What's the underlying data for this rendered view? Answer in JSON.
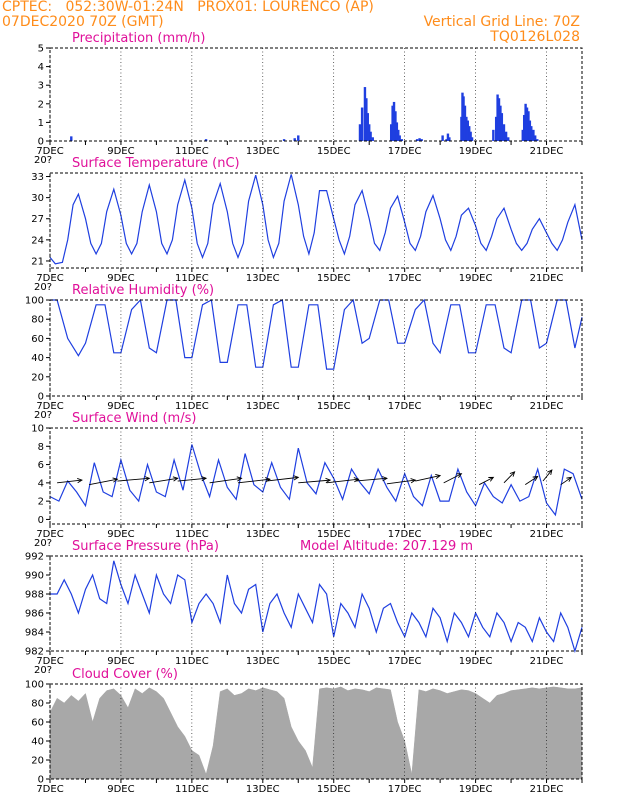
{
  "header": {
    "line1_left": "CPTEC:   052:30W-01:24N   PROX01: LOURENCO (AP)",
    "line2_left": "07DEC2020 70Z (GMT)",
    "line2_right": "Vertical Grid Line: 70Z",
    "line3_right": "TQ0126L028"
  },
  "colors": {
    "series": "#1f3fe0",
    "title": "#e0109a",
    "header": "#ff8c1a",
    "cloud": "#a8a8a8"
  },
  "x_axis": {
    "tick_labels": [
      "7DEC",
      "9DEC",
      "11DEC",
      "13DEC",
      "15DEC",
      "17DEC",
      "19DEC",
      "21DEC"
    ],
    "tick_days": [
      0,
      2,
      4,
      6,
      8,
      10,
      12,
      14
    ],
    "range_days": [
      0,
      15
    ],
    "cut_label": "20?"
  },
  "chart_data": [
    {
      "id": "precip",
      "type": "bar",
      "title": "Precipitation (mm/h)",
      "ylim": [
        0,
        5
      ],
      "yticks": [
        0,
        1,
        2,
        3,
        4,
        5
      ],
      "x": [
        0.6,
        4.4,
        6.6,
        6.9,
        7.0,
        8.74,
        8.8,
        8.88,
        8.92,
        8.96,
        9.0,
        9.04,
        9.1,
        9.62,
        9.66,
        9.7,
        9.74,
        9.78,
        9.82,
        9.86,
        9.92,
        10.35,
        10.42,
        10.48,
        11.07,
        11.18,
        11.22,
        11.26,
        11.6,
        11.63,
        11.66,
        11.7,
        11.74,
        11.78,
        11.82,
        11.86,
        11.9,
        12.5,
        12.58,
        12.62,
        12.66,
        12.7,
        12.74,
        12.8,
        12.86,
        12.92,
        13.33,
        13.37,
        13.41,
        13.45,
        13.49,
        13.53,
        13.57,
        13.63,
        13.68,
        13.74
      ],
      "values": [
        0.25,
        0.1,
        0.1,
        0.15,
        0.3,
        0.9,
        1.8,
        2.9,
        2.3,
        1.5,
        0.9,
        0.5,
        0.2,
        0.9,
        1.9,
        2.1,
        1.6,
        1.0,
        0.6,
        0.3,
        0.1,
        0.1,
        0.15,
        0.1,
        0.3,
        0.1,
        0.4,
        0.2,
        1.3,
        2.6,
        2.4,
        1.9,
        1.3,
        1.1,
        0.8,
        0.5,
        0.2,
        0.6,
        1.3,
        2.5,
        2.3,
        1.9,
        1.5,
        0.9,
        0.5,
        0.2,
        0.6,
        1.4,
        2.0,
        1.8,
        1.6,
        1.1,
        0.8,
        0.6,
        0.3,
        0.1
      ]
    },
    {
      "id": "temp",
      "type": "line",
      "title": "Surface Temperature (nC)",
      "ylim": [
        20,
        33.5
      ],
      "yticks": [
        21,
        24,
        27,
        30,
        33
      ],
      "x": [
        0,
        0.15,
        0.35,
        0.5,
        0.65,
        0.8,
        1,
        1.15,
        1.3,
        1.45,
        1.6,
        1.8,
        2,
        2.15,
        2.3,
        2.45,
        2.6,
        2.8,
        3,
        3.15,
        3.3,
        3.45,
        3.6,
        3.8,
        4,
        4.15,
        4.3,
        4.45,
        4.6,
        4.8,
        5,
        5.15,
        5.3,
        5.45,
        5.6,
        5.8,
        6,
        6.15,
        6.3,
        6.45,
        6.6,
        6.8,
        7,
        7.15,
        7.3,
        7.45,
        7.6,
        7.8,
        8,
        8.15,
        8.3,
        8.45,
        8.6,
        8.8,
        9,
        9.15,
        9.3,
        9.45,
        9.6,
        9.8,
        10,
        10.15,
        10.3,
        10.45,
        10.6,
        10.8,
        11,
        11.15,
        11.3,
        11.45,
        11.6,
        11.8,
        12,
        12.15,
        12.3,
        12.45,
        12.6,
        12.8,
        13,
        13.15,
        13.3,
        13.45,
        13.6,
        13.8,
        14,
        14.15,
        14.3,
        14.45,
        14.6,
        14.8,
        15
      ],
      "values": [
        21.5,
        20.6,
        20.8,
        24,
        29,
        30.5,
        27,
        23.5,
        22,
        23.5,
        28,
        31.2,
        27.5,
        23.5,
        22,
        23.5,
        28,
        31.8,
        28,
        23.5,
        22,
        24,
        29,
        32.5,
        28.5,
        23.5,
        21.5,
        23.5,
        29,
        32,
        28,
        23.5,
        21.5,
        23.5,
        29.5,
        33.2,
        29,
        24,
        21.5,
        23.5,
        29.5,
        33.3,
        29,
        24.5,
        22,
        25,
        31,
        31,
        27,
        24,
        22,
        24.5,
        29,
        31,
        27,
        23.5,
        22.5,
        25,
        28.5,
        30.2,
        26.5,
        23.5,
        22.5,
        24.5,
        28,
        30.3,
        27,
        24,
        22.5,
        24.5,
        27.5,
        28.5,
        26,
        23.5,
        22.5,
        24.5,
        27,
        28.5,
        25.5,
        23.5,
        22.5,
        23.5,
        25.5,
        27,
        25,
        23.5,
        22.5,
        24,
        26.5,
        29,
        24
      ]
    },
    {
      "id": "rh",
      "type": "line",
      "title": "Relative Humidity (%)",
      "ylim": [
        0,
        100
      ],
      "yticks": [
        0,
        20,
        40,
        60,
        80,
        100
      ],
      "x": [
        0,
        0.2,
        0.5,
        0.8,
        1,
        1.3,
        1.55,
        1.8,
        2,
        2.3,
        2.55,
        2.8,
        3,
        3.3,
        3.55,
        3.8,
        4,
        4.3,
        4.55,
        4.8,
        5,
        5.3,
        5.55,
        5.8,
        6,
        6.3,
        6.55,
        6.8,
        7,
        7.3,
        7.55,
        7.8,
        8,
        8.3,
        8.55,
        8.8,
        9,
        9.3,
        9.55,
        9.8,
        10,
        10.3,
        10.55,
        10.8,
        11,
        11.3,
        11.55,
        11.8,
        12,
        12.3,
        12.55,
        12.8,
        13,
        13.3,
        13.55,
        13.8,
        14,
        14.3,
        14.55,
        14.8,
        15
      ],
      "values": [
        100,
        100,
        60,
        42,
        55,
        95,
        95,
        45,
        45,
        90,
        100,
        50,
        45,
        100,
        100,
        40,
        40,
        95,
        100,
        35,
        35,
        95,
        95,
        30,
        30,
        95,
        100,
        30,
        30,
        95,
        95,
        28,
        28,
        90,
        100,
        55,
        60,
        100,
        100,
        55,
        55,
        90,
        100,
        55,
        45,
        95,
        95,
        45,
        45,
        95,
        95,
        50,
        45,
        100,
        100,
        50,
        55,
        100,
        100,
        50,
        82
      ]
    },
    {
      "id": "wind",
      "type": "line",
      "title": "Surface Wind (m/s)",
      "ylim": [
        -0.5,
        10
      ],
      "yticks": [
        0,
        2,
        4,
        6,
        8,
        10
      ],
      "x": [
        0,
        0.25,
        0.5,
        0.75,
        1,
        1.25,
        1.5,
        1.75,
        2,
        2.25,
        2.5,
        2.75,
        3,
        3.25,
        3.5,
        3.75,
        4,
        4.25,
        4.5,
        4.75,
        5,
        5.25,
        5.5,
        5.75,
        6,
        6.25,
        6.5,
        6.75,
        7,
        7.25,
        7.5,
        7.75,
        8,
        8.25,
        8.5,
        8.75,
        9,
        9.25,
        9.5,
        9.75,
        10,
        10.25,
        10.5,
        10.75,
        11,
        11.25,
        11.5,
        11.75,
        12,
        12.25,
        12.5,
        12.75,
        13,
        13.25,
        13.5,
        13.75,
        14,
        14.25,
        14.5,
        14.75,
        15
      ],
      "values": [
        2.5,
        2.0,
        4.2,
        3.0,
        1.5,
        6.2,
        3.0,
        2.5,
        6.5,
        3.2,
        2.0,
        6.0,
        3.0,
        2.5,
        6.5,
        3.2,
        8.2,
        5.0,
        2.5,
        6.5,
        3.5,
        2.2,
        7.2,
        3.8,
        3.0,
        6.2,
        3.5,
        2.2,
        7.8,
        4.0,
        2.8,
        6.2,
        4.5,
        2.2,
        5.5,
        4.0,
        2.8,
        5.5,
        3.5,
        2.0,
        5.0,
        2.5,
        1.5,
        4.8,
        2.0,
        2.0,
        5.5,
        3.0,
        1.5,
        4.0,
        2.5,
        1.8,
        3.8,
        2.0,
        2.5,
        5.5,
        1.8,
        0.5,
        5.5,
        5.0,
        2.2
      ],
      "arrows": {
        "x": [
          0.2,
          1.1,
          1.9,
          2.8,
          3.6,
          4.5,
          5.3,
          6.1,
          7.0,
          7.8,
          8.6,
          9.5,
          10.3,
          11.1,
          12.1,
          12.8,
          13.4,
          13.9,
          14.4
        ],
        "y": [
          4.0,
          3.8,
          4.2,
          4.0,
          4.2,
          4.0,
          4.0,
          4.2,
          4.0,
          4.0,
          4.2,
          3.9,
          4.2,
          4.0,
          3.8,
          4.0,
          3.8,
          4.2,
          3.8
        ],
        "dx": [
          0.7,
          0.8,
          0.9,
          0.8,
          0.8,
          0.9,
          0.9,
          0.9,
          0.9,
          0.9,
          0.9,
          0.8,
          0.7,
          0.5,
          0.4,
          0.3,
          0.35,
          0.25,
          0.3
        ],
        "dy": [
          0.3,
          0.6,
          0.3,
          0.5,
          0.3,
          0.5,
          0.4,
          0.4,
          0.3,
          0.4,
          0.3,
          0.4,
          0.6,
          1.0,
          0.8,
          1.2,
          0.9,
          1.2,
          0.8
        ]
      }
    },
    {
      "id": "pres",
      "type": "line",
      "title": "Surface Pressure (hPa)",
      "subtitle": "Model Altitude: 207.129 m",
      "ylim": [
        982,
        992
      ],
      "yticks": [
        982,
        984,
        986,
        988,
        990,
        992
      ],
      "x": [
        0,
        0.2,
        0.4,
        0.6,
        0.8,
        1,
        1.2,
        1.4,
        1.6,
        1.8,
        2,
        2.2,
        2.4,
        2.6,
        2.8,
        3,
        3.2,
        3.4,
        3.6,
        3.8,
        4,
        4.2,
        4.4,
        4.6,
        4.8,
        5,
        5.2,
        5.4,
        5.6,
        5.8,
        6,
        6.2,
        6.4,
        6.6,
        6.8,
        7,
        7.2,
        7.4,
        7.6,
        7.8,
        8,
        8.2,
        8.4,
        8.6,
        8.8,
        9,
        9.2,
        9.4,
        9.6,
        9.8,
        10,
        10.2,
        10.4,
        10.6,
        10.8,
        11,
        11.2,
        11.4,
        11.6,
        11.8,
        12,
        12.2,
        12.4,
        12.6,
        12.8,
        13,
        13.2,
        13.4,
        13.6,
        13.8,
        14,
        14.2,
        14.4,
        14.6,
        14.8,
        15
      ],
      "values": [
        988,
        988,
        989.5,
        988,
        986,
        988.5,
        990,
        987.5,
        987,
        991.5,
        989,
        987,
        990,
        988,
        986,
        990,
        988,
        987,
        990,
        989.5,
        985,
        987,
        988,
        987,
        985,
        990,
        987,
        986,
        988.5,
        989,
        984,
        987,
        988,
        986,
        984.5,
        988,
        986.5,
        985,
        989,
        988,
        983.5,
        987,
        986,
        984.5,
        988,
        986.5,
        984,
        986.5,
        987,
        985,
        983.5,
        986,
        985,
        983.5,
        986.5,
        985.5,
        983,
        986,
        985,
        983.5,
        986,
        984.5,
        983.5,
        986,
        985,
        983,
        985,
        984.5,
        983,
        985.5,
        984,
        983,
        986,
        984.5,
        982,
        984.5
      ]
    },
    {
      "id": "cloud",
      "type": "area",
      "title": "Cloud Cover (%)",
      "ylim": [
        0,
        100
      ],
      "yticks": [
        0,
        20,
        40,
        60,
        80,
        100
      ],
      "x": [
        0,
        0.2,
        0.4,
        0.6,
        0.8,
        1,
        1.2,
        1.4,
        1.6,
        1.8,
        2,
        2.2,
        2.4,
        2.6,
        2.8,
        3,
        3.2,
        3.4,
        3.6,
        3.8,
        4,
        4.2,
        4.4,
        4.6,
        4.8,
        5,
        5.2,
        5.4,
        5.6,
        5.8,
        6,
        6.2,
        6.4,
        6.6,
        6.8,
        7,
        7.2,
        7.4,
        7.6,
        7.8,
        8,
        8.2,
        8.4,
        8.6,
        8.8,
        9,
        9.2,
        9.4,
        9.6,
        9.8,
        10,
        10.2,
        10.4,
        10.6,
        10.8,
        11,
        11.2,
        11.4,
        11.6,
        11.8,
        12,
        12.2,
        12.4,
        12.6,
        12.8,
        13,
        13.2,
        13.4,
        13.6,
        13.8,
        14,
        14.2,
        14.4,
        14.6,
        14.8,
        15
      ],
      "values": [
        70,
        85,
        80,
        88,
        82,
        90,
        60,
        85,
        93,
        95,
        88,
        75,
        95,
        90,
        96,
        92,
        85,
        70,
        55,
        45,
        30,
        25,
        5,
        35,
        92,
        95,
        88,
        90,
        95,
        93,
        96,
        94,
        92,
        85,
        55,
        40,
        30,
        12,
        95,
        96,
        95,
        97,
        93,
        95,
        94,
        92,
        96,
        95,
        94,
        60,
        40,
        5,
        94,
        92,
        95,
        93,
        90,
        92,
        94,
        93,
        90,
        85,
        80,
        88,
        90,
        93,
        94,
        95,
        96,
        95,
        96,
        97,
        96,
        95,
        95,
        96
      ]
    }
  ]
}
